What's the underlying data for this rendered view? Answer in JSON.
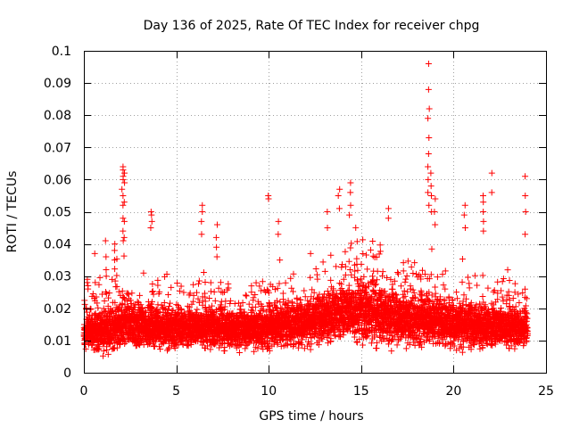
{
  "chart_data": {
    "type": "scatter",
    "title": "Day 136 of 2025, Rate Of TEC Index for receiver chpg",
    "xlabel": "GPS time / hours",
    "ylabel": "ROTI / TECUs",
    "xlim": [
      0,
      25
    ],
    "ylim": [
      0,
      0.1
    ],
    "x_ticks": [
      0,
      5,
      10,
      15,
      20,
      25
    ],
    "x_tick_labels": [
      "0",
      "5",
      "10",
      "15",
      "20",
      "25"
    ],
    "y_ticks": [
      0,
      0.01,
      0.02,
      0.03,
      0.04,
      0.05,
      0.06,
      0.07,
      0.08,
      0.09,
      0.1
    ],
    "y_tick_labels": [
      "0",
      "0.01",
      "0.02",
      "0.03",
      "0.04",
      "0.05",
      "0.06",
      "0.07",
      "0.08",
      "0.09",
      "0.1"
    ],
    "grid": true,
    "marker": "+",
    "series": [
      {
        "name": "ROTI",
        "color": "#ff0000",
        "sampling": {
          "x_start": 0.0,
          "x_end": 24.0,
          "x_step": 0.02,
          "points_per_step": 5
        },
        "baseline_profile": {
          "x": [
            0,
            1,
            2,
            4,
            6,
            8,
            10,
            12,
            14,
            15,
            17,
            19,
            21,
            23,
            24
          ],
          "median": [
            0.012,
            0.013,
            0.015,
            0.014,
            0.014,
            0.0135,
            0.014,
            0.016,
            0.019,
            0.019,
            0.017,
            0.016,
            0.015,
            0.014,
            0.0135
          ],
          "spread": [
            0.006,
            0.008,
            0.009,
            0.008,
            0.008,
            0.007,
            0.008,
            0.009,
            0.011,
            0.012,
            0.01,
            0.009,
            0.009,
            0.008,
            0.006
          ]
        },
        "spikes": [
          {
            "x": 0.2,
            "y": [
              0.028,
              0.029,
              0.027,
              0.026
            ]
          },
          {
            "x": 0.6,
            "y": [
              0.037,
              0.028
            ]
          },
          {
            "x": 1.2,
            "y": [
              0.041,
              0.036,
              0.032,
              0.03
            ]
          },
          {
            "x": 1.7,
            "y": [
              0.04,
              0.038,
              0.035
            ]
          },
          {
            "x": 2.1,
            "y": [
              0.064,
              0.063,
              0.061,
              0.06,
              0.057,
              0.055,
              0.052,
              0.048,
              0.044,
              0.041
            ]
          },
          {
            "x": 2.2,
            "y": [
              0.062,
              0.059,
              0.053,
              0.047,
              0.042
            ]
          },
          {
            "x": 3.65,
            "y": [
              0.05,
              0.049,
              0.047,
              0.045
            ]
          },
          {
            "x": 6.4,
            "y": [
              0.052,
              0.05,
              0.047,
              0.043
            ]
          },
          {
            "x": 7.2,
            "y": [
              0.046,
              0.042,
              0.039,
              0.036
            ]
          },
          {
            "x": 9.95,
            "y": [
              0.055,
              0.054
            ]
          },
          {
            "x": 10.5,
            "y": [
              0.047,
              0.043
            ]
          },
          {
            "x": 13.2,
            "y": [
              0.05,
              0.045
            ]
          },
          {
            "x": 13.8,
            "y": [
              0.057,
              0.055,
              0.051
            ]
          },
          {
            "x": 14.4,
            "y": [
              0.059,
              0.056,
              0.052,
              0.049
            ]
          },
          {
            "x": 16.5,
            "y": [
              0.051,
              0.048
            ]
          },
          {
            "x": 18.65,
            "y": [
              0.096,
              0.088,
              0.082,
              0.079,
              0.073,
              0.068,
              0.064,
              0.06,
              0.056,
              0.052
            ]
          },
          {
            "x": 18.8,
            "y": [
              0.062,
              0.058,
              0.055,
              0.05
            ]
          },
          {
            "x": 19.0,
            "y": [
              0.054,
              0.05,
              0.046
            ]
          },
          {
            "x": 20.6,
            "y": [
              0.052,
              0.049,
              0.045
            ]
          },
          {
            "x": 21.6,
            "y": [
              0.055,
              0.053,
              0.05,
              0.047,
              0.044
            ]
          },
          {
            "x": 22.1,
            "y": [
              0.062,
              0.056
            ]
          },
          {
            "x": 23.9,
            "y": [
              0.061,
              0.055,
              0.05,
              0.043
            ]
          }
        ]
      }
    ]
  }
}
